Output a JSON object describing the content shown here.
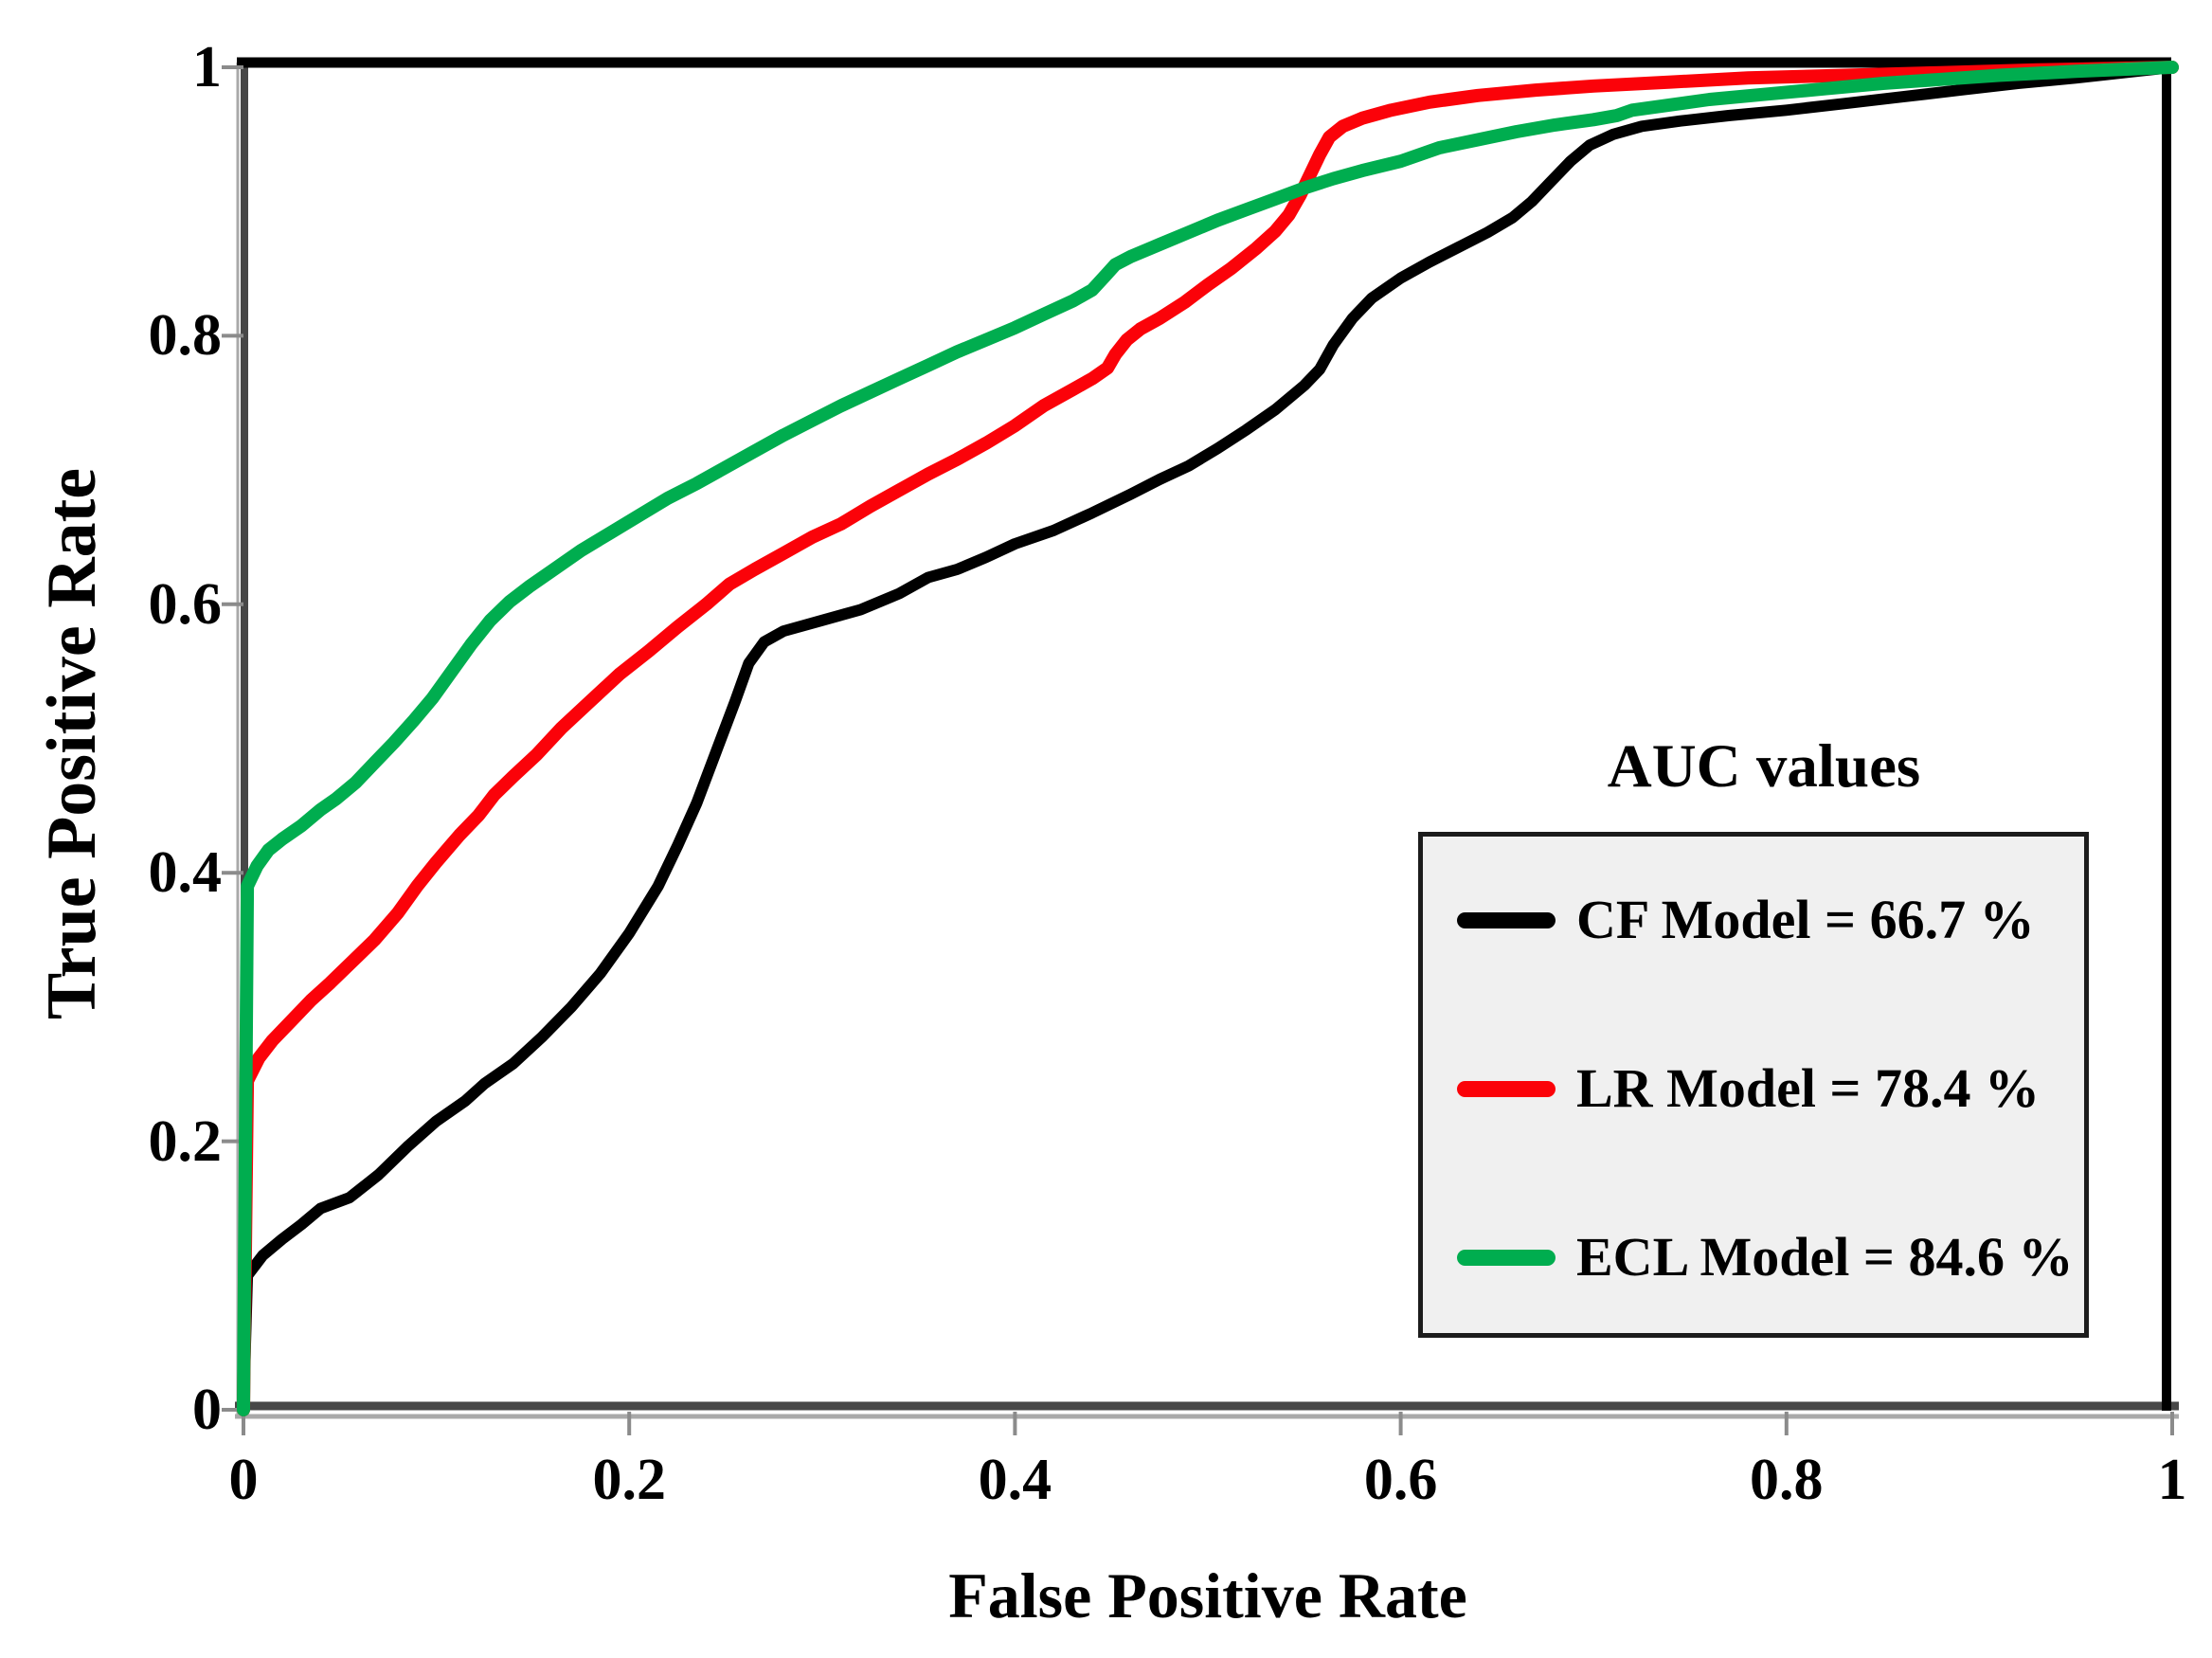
{
  "figure": {
    "background_color": "#ffffff",
    "x_axis_title": "False Positive Rate",
    "y_axis_title": "True Positive Rate",
    "legend_title": "AUC values",
    "colors": {
      "frame": "#000000",
      "axis_gray": "#474747",
      "axis_shadow": "#a9a9a9",
      "tick": "#8b8b8b",
      "legend_fill": "#f0f0f0",
      "legend_border": "#1c1c1c",
      "text": "#000000"
    }
  },
  "chart_data": {
    "type": "line",
    "title": "AUC values",
    "xlabel": "False Positive Rate",
    "ylabel": "True Positive Rate",
    "xlim": [
      0,
      1
    ],
    "ylim": [
      0,
      1
    ],
    "grid": false,
    "legend_position": "lower right",
    "tick_values": [
      0,
      0.2,
      0.4,
      0.6,
      0.8,
      1
    ],
    "tick_labels": [
      "0",
      "0.2",
      "0.4",
      "0.6",
      "0.8",
      "1"
    ],
    "series": [
      {
        "name": "CF Model",
        "legend_label": "CF Model = 66.7 %",
        "auc_percent": 66.7,
        "color": "#000000",
        "points": [
          [
            0,
            0
          ],
          [
            0.002,
            0.1
          ],
          [
            0.01,
            0.115
          ],
          [
            0.02,
            0.127
          ],
          [
            0.03,
            0.138
          ],
          [
            0.04,
            0.15
          ],
          [
            0.055,
            0.158
          ],
          [
            0.07,
            0.175
          ],
          [
            0.085,
            0.196
          ],
          [
            0.1,
            0.215
          ],
          [
            0.115,
            0.23
          ],
          [
            0.125,
            0.243
          ],
          [
            0.14,
            0.258
          ],
          [
            0.155,
            0.278
          ],
          [
            0.17,
            0.3
          ],
          [
            0.185,
            0.325
          ],
          [
            0.2,
            0.355
          ],
          [
            0.215,
            0.39
          ],
          [
            0.225,
            0.42
          ],
          [
            0.235,
            0.452
          ],
          [
            0.245,
            0.49
          ],
          [
            0.255,
            0.528
          ],
          [
            0.262,
            0.556
          ],
          [
            0.27,
            0.572
          ],
          [
            0.28,
            0.58
          ],
          [
            0.3,
            0.588
          ],
          [
            0.32,
            0.596
          ],
          [
            0.34,
            0.608
          ],
          [
            0.355,
            0.62
          ],
          [
            0.37,
            0.626
          ],
          [
            0.385,
            0.635
          ],
          [
            0.4,
            0.645
          ],
          [
            0.42,
            0.655
          ],
          [
            0.44,
            0.668
          ],
          [
            0.46,
            0.682
          ],
          [
            0.475,
            0.693
          ],
          [
            0.49,
            0.703
          ],
          [
            0.505,
            0.716
          ],
          [
            0.52,
            0.73
          ],
          [
            0.535,
            0.745
          ],
          [
            0.55,
            0.763
          ],
          [
            0.558,
            0.775
          ],
          [
            0.565,
            0.793
          ],
          [
            0.575,
            0.813
          ],
          [
            0.585,
            0.828
          ],
          [
            0.6,
            0.843
          ],
          [
            0.615,
            0.855
          ],
          [
            0.63,
            0.866
          ],
          [
            0.645,
            0.877
          ],
          [
            0.658,
            0.888
          ],
          [
            0.668,
            0.9
          ],
          [
            0.678,
            0.915
          ],
          [
            0.688,
            0.93
          ],
          [
            0.698,
            0.942
          ],
          [
            0.71,
            0.95
          ],
          [
            0.725,
            0.956
          ],
          [
            0.745,
            0.96
          ],
          [
            0.77,
            0.964
          ],
          [
            0.8,
            0.968
          ],
          [
            0.83,
            0.973
          ],
          [
            0.86,
            0.978
          ],
          [
            0.89,
            0.983
          ],
          [
            0.92,
            0.988
          ],
          [
            0.95,
            0.992
          ],
          [
            0.975,
            0.996
          ],
          [
            1,
            1
          ]
        ]
      },
      {
        "name": "LR Model",
        "legend_label": "LR Model = 78.4 %",
        "auc_percent": 78.4,
        "color": "#fb0209",
        "points": [
          [
            0,
            0
          ],
          [
            0.002,
            0.245
          ],
          [
            0.008,
            0.262
          ],
          [
            0.015,
            0.275
          ],
          [
            0.025,
            0.29
          ],
          [
            0.035,
            0.305
          ],
          [
            0.045,
            0.318
          ],
          [
            0.055,
            0.332
          ],
          [
            0.068,
            0.35
          ],
          [
            0.08,
            0.37
          ],
          [
            0.09,
            0.39
          ],
          [
            0.1,
            0.408
          ],
          [
            0.112,
            0.428
          ],
          [
            0.122,
            0.443
          ],
          [
            0.13,
            0.458
          ],
          [
            0.14,
            0.472
          ],
          [
            0.152,
            0.488
          ],
          [
            0.165,
            0.508
          ],
          [
            0.18,
            0.528
          ],
          [
            0.195,
            0.548
          ],
          [
            0.21,
            0.565
          ],
          [
            0.225,
            0.583
          ],
          [
            0.24,
            0.6
          ],
          [
            0.252,
            0.615
          ],
          [
            0.265,
            0.626
          ],
          [
            0.28,
            0.638
          ],
          [
            0.295,
            0.65
          ],
          [
            0.31,
            0.66
          ],
          [
            0.325,
            0.673
          ],
          [
            0.34,
            0.685
          ],
          [
            0.355,
            0.697
          ],
          [
            0.37,
            0.708
          ],
          [
            0.385,
            0.72
          ],
          [
            0.4,
            0.733
          ],
          [
            0.415,
            0.748
          ],
          [
            0.43,
            0.76
          ],
          [
            0.44,
            0.768
          ],
          [
            0.448,
            0.776
          ],
          [
            0.452,
            0.786
          ],
          [
            0.458,
            0.797
          ],
          [
            0.465,
            0.805
          ],
          [
            0.475,
            0.813
          ],
          [
            0.488,
            0.825
          ],
          [
            0.5,
            0.838
          ],
          [
            0.512,
            0.85
          ],
          [
            0.525,
            0.865
          ],
          [
            0.535,
            0.878
          ],
          [
            0.542,
            0.89
          ],
          [
            0.548,
            0.905
          ],
          [
            0.553,
            0.92
          ],
          [
            0.558,
            0.935
          ],
          [
            0.563,
            0.948
          ],
          [
            0.57,
            0.956
          ],
          [
            0.58,
            0.962
          ],
          [
            0.595,
            0.968
          ],
          [
            0.615,
            0.974
          ],
          [
            0.64,
            0.979
          ],
          [
            0.67,
            0.983
          ],
          [
            0.7,
            0.986
          ],
          [
            0.74,
            0.989
          ],
          [
            0.78,
            0.992
          ],
          [
            0.83,
            0.994
          ],
          [
            0.88,
            0.996
          ],
          [
            0.93,
            0.998
          ],
          [
            1,
            1
          ]
        ]
      },
      {
        "name": "ECL Model",
        "legend_label": "ECL Model = 84.6 %",
        "auc_percent": 84.6,
        "color": "#00ad4f",
        "points": [
          [
            0,
            0
          ],
          [
            0.002,
            0.39
          ],
          [
            0.007,
            0.405
          ],
          [
            0.013,
            0.417
          ],
          [
            0.02,
            0.425
          ],
          [
            0.03,
            0.435
          ],
          [
            0.04,
            0.447
          ],
          [
            0.048,
            0.455
          ],
          [
            0.058,
            0.467
          ],
          [
            0.068,
            0.482
          ],
          [
            0.078,
            0.497
          ],
          [
            0.088,
            0.513
          ],
          [
            0.098,
            0.53
          ],
          [
            0.108,
            0.55
          ],
          [
            0.118,
            0.57
          ],
          [
            0.128,
            0.588
          ],
          [
            0.138,
            0.602
          ],
          [
            0.148,
            0.613
          ],
          [
            0.16,
            0.625
          ],
          [
            0.175,
            0.64
          ],
          [
            0.19,
            0.653
          ],
          [
            0.205,
            0.666
          ],
          [
            0.22,
            0.679
          ],
          [
            0.235,
            0.69
          ],
          [
            0.25,
            0.702
          ],
          [
            0.265,
            0.714
          ],
          [
            0.28,
            0.726
          ],
          [
            0.295,
            0.737
          ],
          [
            0.31,
            0.748
          ],
          [
            0.325,
            0.758
          ],
          [
            0.34,
            0.768
          ],
          [
            0.355,
            0.778
          ],
          [
            0.37,
            0.788
          ],
          [
            0.385,
            0.797
          ],
          [
            0.4,
            0.806
          ],
          [
            0.415,
            0.816
          ],
          [
            0.43,
            0.826
          ],
          [
            0.44,
            0.834
          ],
          [
            0.447,
            0.845
          ],
          [
            0.452,
            0.853
          ],
          [
            0.46,
            0.859
          ],
          [
            0.475,
            0.868
          ],
          [
            0.49,
            0.877
          ],
          [
            0.505,
            0.886
          ],
          [
            0.52,
            0.894
          ],
          [
            0.535,
            0.902
          ],
          [
            0.55,
            0.91
          ],
          [
            0.565,
            0.917
          ],
          [
            0.58,
            0.923
          ],
          [
            0.6,
            0.93
          ],
          [
            0.62,
            0.94
          ],
          [
            0.64,
            0.946
          ],
          [
            0.66,
            0.952
          ],
          [
            0.68,
            0.957
          ],
          [
            0.7,
            0.961
          ],
          [
            0.712,
            0.964
          ],
          [
            0.72,
            0.968
          ],
          [
            0.74,
            0.972
          ],
          [
            0.76,
            0.976
          ],
          [
            0.79,
            0.98
          ],
          [
            0.82,
            0.984
          ],
          [
            0.85,
            0.988
          ],
          [
            0.88,
            0.991
          ],
          [
            0.91,
            0.994
          ],
          [
            0.95,
            0.997
          ],
          [
            1,
            1
          ]
        ]
      }
    ]
  }
}
